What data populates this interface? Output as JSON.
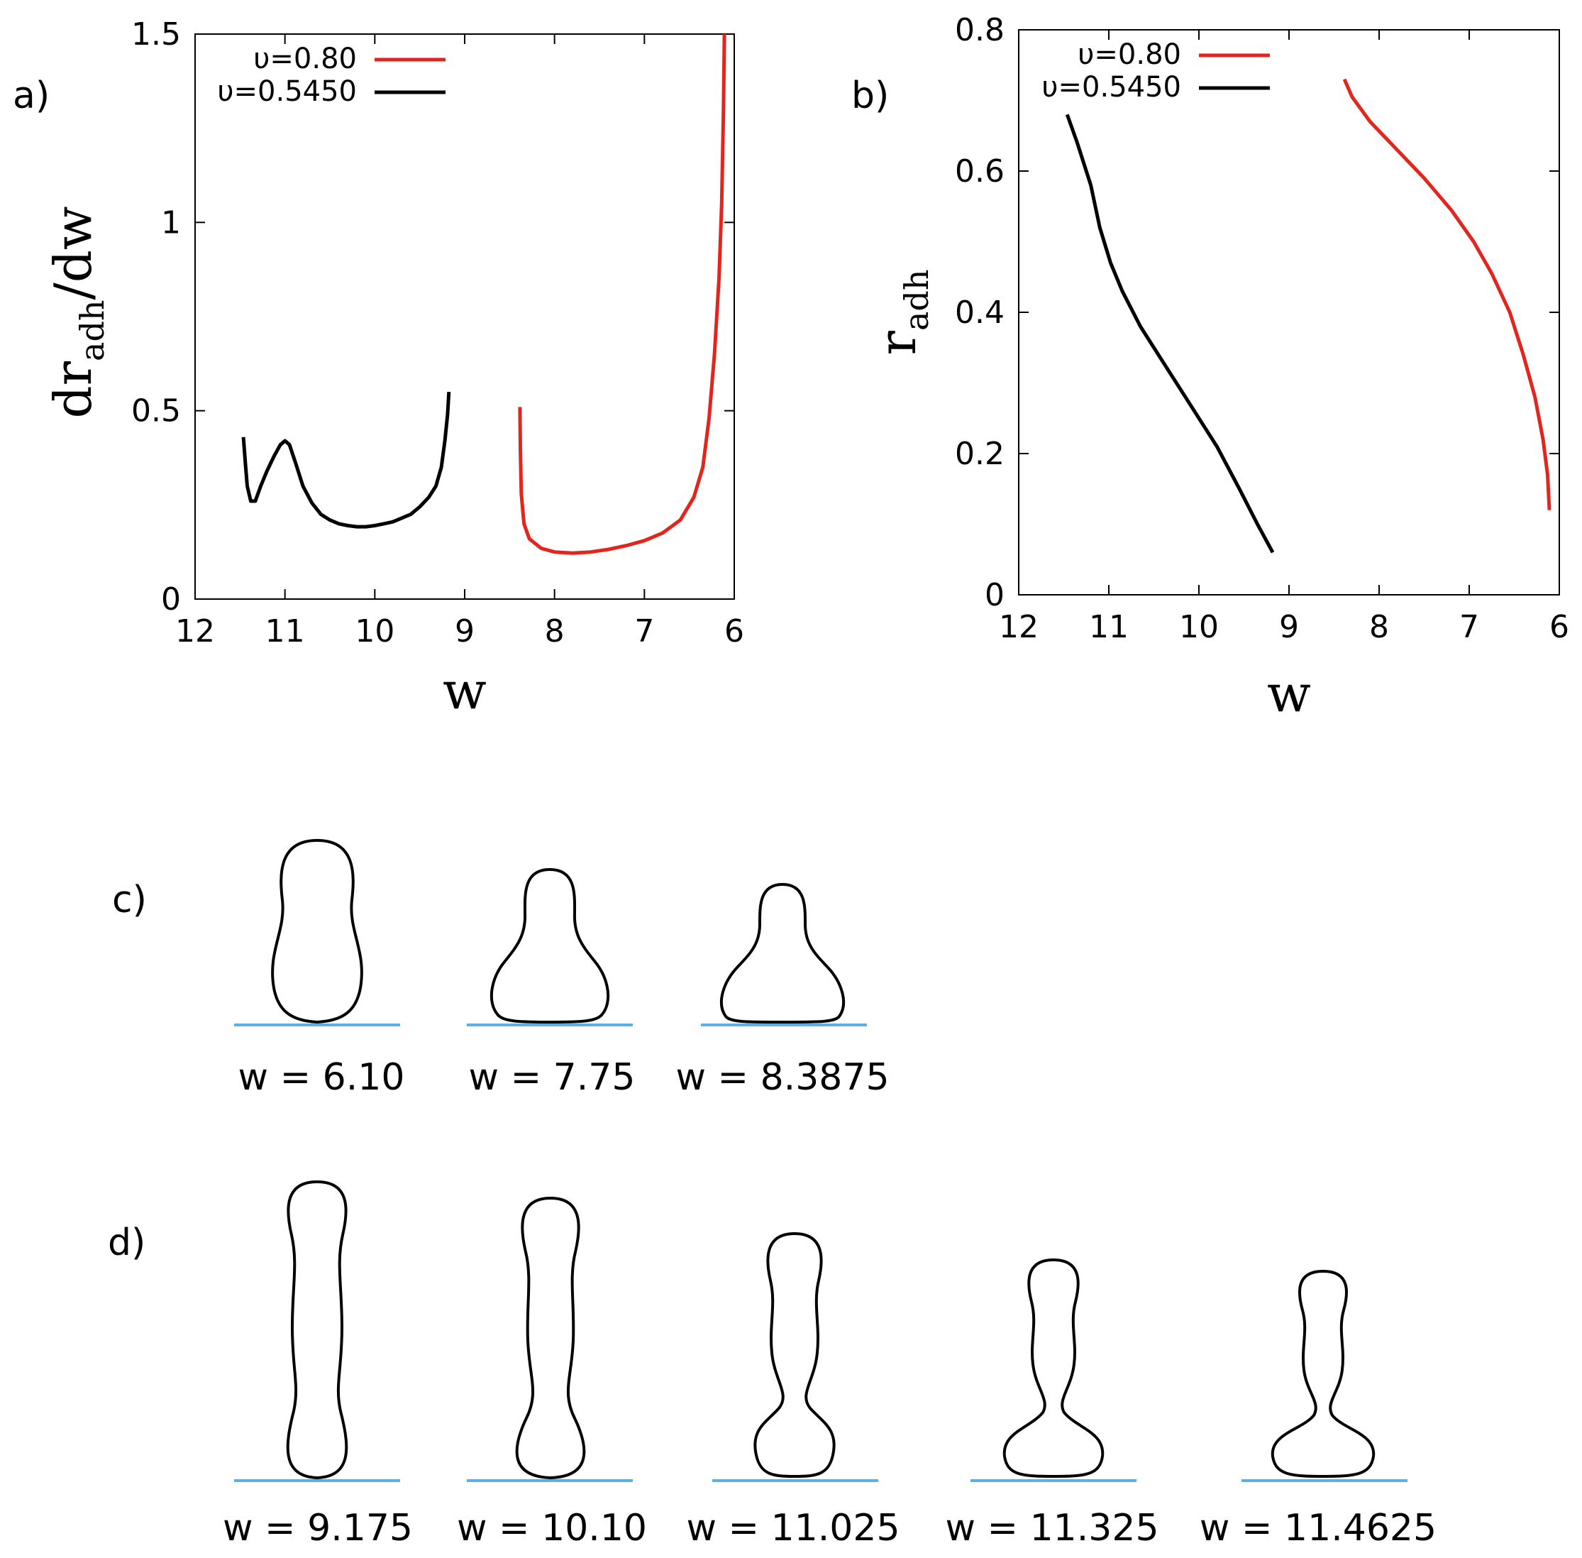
{
  "chart_data": [
    {
      "type": "line",
      "panel_label": "a)",
      "xlabel": "w",
      "ylabel_main": "dr",
      "ylabel_sub": "adh",
      "ylabel_tail": "/dw",
      "xlim": [
        12,
        6
      ],
      "ylim": [
        0,
        1.5
      ],
      "x_ticks": [
        "12",
        "11",
        "10",
        "9",
        "8",
        "7",
        "6"
      ],
      "y_ticks": [
        "0",
        "0.5",
        "1",
        "1.5"
      ],
      "legend_position": "top-right",
      "series": [
        {
          "name": "υ=0.80",
          "color": "#e3261d",
          "points": [
            [
              8.385,
              0.51
            ],
            [
              8.38,
              0.4
            ],
            [
              8.37,
              0.28
            ],
            [
              8.34,
              0.2
            ],
            [
              8.28,
              0.16
            ],
            [
              8.15,
              0.135
            ],
            [
              8.0,
              0.125
            ],
            [
              7.8,
              0.122
            ],
            [
              7.6,
              0.125
            ],
            [
              7.4,
              0.132
            ],
            [
              7.2,
              0.142
            ],
            [
              7.0,
              0.155
            ],
            [
              6.8,
              0.175
            ],
            [
              6.6,
              0.21
            ],
            [
              6.45,
              0.27
            ],
            [
              6.35,
              0.35
            ],
            [
              6.28,
              0.48
            ],
            [
              6.22,
              0.65
            ],
            [
              6.17,
              0.85
            ],
            [
              6.14,
              1.05
            ],
            [
              6.12,
              1.3
            ],
            [
              6.11,
              1.5
            ]
          ]
        },
        {
          "name": "υ=0.5450",
          "color": "#000000",
          "points": [
            [
              11.4625,
              0.43
            ],
            [
              11.44,
              0.36
            ],
            [
              11.42,
              0.3
            ],
            [
              11.38,
              0.26
            ],
            [
              11.33,
              0.26
            ],
            [
              11.27,
              0.3
            ],
            [
              11.2,
              0.34
            ],
            [
              11.12,
              0.38
            ],
            [
              11.05,
              0.41
            ],
            [
              11.0,
              0.42
            ],
            [
              10.95,
              0.41
            ],
            [
              10.88,
              0.36
            ],
            [
              10.8,
              0.3
            ],
            [
              10.7,
              0.255
            ],
            [
              10.6,
              0.225
            ],
            [
              10.5,
              0.21
            ],
            [
              10.4,
              0.2
            ],
            [
              10.3,
              0.195
            ],
            [
              10.2,
              0.192
            ],
            [
              10.1,
              0.192
            ],
            [
              10.0,
              0.195
            ],
            [
              9.9,
              0.2
            ],
            [
              9.8,
              0.205
            ],
            [
              9.7,
              0.215
            ],
            [
              9.6,
              0.225
            ],
            [
              9.5,
              0.245
            ],
            [
              9.4,
              0.27
            ],
            [
              9.32,
              0.3
            ],
            [
              9.26,
              0.35
            ],
            [
              9.22,
              0.42
            ],
            [
              9.19,
              0.49
            ],
            [
              9.175,
              0.55
            ]
          ]
        }
      ]
    },
    {
      "type": "line",
      "panel_label": "b)",
      "xlabel": "w",
      "ylabel_main": "r",
      "ylabel_sub": "adh",
      "xlim": [
        12,
        6
      ],
      "ylim": [
        0,
        0.8
      ],
      "x_ticks": [
        "12",
        "11",
        "10",
        "9",
        "8",
        "7",
        "6"
      ],
      "y_ticks": [
        "0",
        "0.2",
        "0.4",
        "0.6",
        "0.8"
      ],
      "legend_position": "top-right",
      "series": [
        {
          "name": "υ=0.80",
          "color": "#e3261d",
          "points": [
            [
              8.385,
              0.73
            ],
            [
              8.3,
              0.705
            ],
            [
              8.1,
              0.67
            ],
            [
              7.8,
              0.63
            ],
            [
              7.5,
              0.59
            ],
            [
              7.2,
              0.545
            ],
            [
              6.95,
              0.5
            ],
            [
              6.75,
              0.455
            ],
            [
              6.55,
              0.4
            ],
            [
              6.4,
              0.34
            ],
            [
              6.27,
              0.28
            ],
            [
              6.18,
              0.22
            ],
            [
              6.13,
              0.17
            ],
            [
              6.11,
              0.12
            ]
          ]
        },
        {
          "name": "υ=0.5450",
          "color": "#000000",
          "points": [
            [
              11.4625,
              0.68
            ],
            [
              11.35,
              0.64
            ],
            [
              11.2,
              0.58
            ],
            [
              11.1,
              0.52
            ],
            [
              10.98,
              0.47
            ],
            [
              10.85,
              0.43
            ],
            [
              10.65,
              0.38
            ],
            [
              10.4,
              0.33
            ],
            [
              10.1,
              0.27
            ],
            [
              9.8,
              0.21
            ],
            [
              9.55,
              0.15
            ],
            [
              9.35,
              0.1
            ],
            [
              9.18,
              0.06
            ]
          ]
        }
      ]
    }
  ],
  "panels": {
    "c_label": "c)",
    "d_label": "d)"
  },
  "shapes_c": [
    {
      "caption": "w = 6.10"
    },
    {
      "caption": "w = 7.75"
    },
    {
      "caption": "w = 8.3875"
    }
  ],
  "shapes_d": [
    {
      "caption": "w = 9.175"
    },
    {
      "caption": "w = 10.10"
    },
    {
      "caption": "w = 11.025"
    },
    {
      "caption": "w = 11.325"
    },
    {
      "caption": "w = 11.4625"
    }
  ],
  "colors": {
    "substrate": "#5aafe6",
    "outline": "#000000"
  }
}
